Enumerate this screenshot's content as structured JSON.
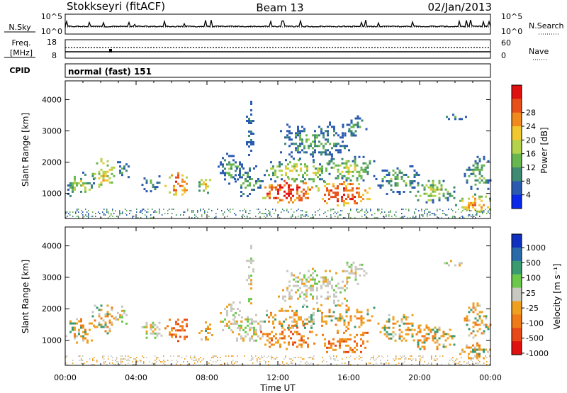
{
  "header": {
    "station": "Stokkseyri (fitACF)",
    "beam": "Beam 13",
    "date": "02/Jan/2013"
  },
  "strip": {
    "nsky_label": "N.Sky",
    "nsky_ticks": [
      "10^5",
      "10^0"
    ],
    "nsearch_label": "N.Search",
    "nsearch_ticks": [
      "10^5",
      "10^0"
    ],
    "freq_label": "Freq.",
    "freq_unit": "[MHz]",
    "freq_ticks": [
      "18",
      "8"
    ],
    "nave_label": "Nave",
    "nave_ticks": [
      "60",
      "0"
    ],
    "cpid_label": "CPID",
    "cpid_value": "normal (fast) 151"
  },
  "chart_data": [
    {
      "type": "heatmap",
      "quantity": "Power",
      "xlabel": "",
      "ylabel": "Slant Range [km]",
      "ylim": [
        200,
        4600
      ],
      "yticks": [
        "1000",
        "2000",
        "3000",
        "4000"
      ],
      "xlim": [
        0,
        24
      ],
      "colorbar": {
        "label": "Power [dB]",
        "ticks": [
          "4",
          "8",
          "12",
          "16",
          "20",
          "24",
          "28"
        ],
        "colors": [
          "#0a28e8",
          "#2a5bb0",
          "#3f8a72",
          "#68b650",
          "#b4d24a",
          "#f2c830",
          "#f08a1e",
          "#e8501a",
          "#e01010"
        ]
      }
    },
    {
      "type": "heatmap",
      "quantity": "Velocity",
      "xlabel": "Time UT",
      "ylabel": "Slant Range [km]",
      "ylim": [
        200,
        4600
      ],
      "yticks": [
        "1000",
        "2000",
        "3000",
        "4000"
      ],
      "xlim": [
        0,
        24
      ],
      "xticks": [
        "00:00",
        "04:00",
        "08:00",
        "12:00",
        "16:00",
        "20:00",
        "00:00"
      ],
      "colorbar": {
        "label": "Velocity [m s⁻¹]",
        "ticks": [
          "1000",
          "500",
          "100",
          "25",
          "-25",
          "-100",
          "-500",
          "-1000"
        ],
        "colors": [
          "#1030c0",
          "#2a6aa8",
          "#3a9a70",
          "#6cc84a",
          "#c8c8c0",
          "#f0a020",
          "#f07a18",
          "#e84818",
          "#e01010"
        ]
      }
    }
  ]
}
